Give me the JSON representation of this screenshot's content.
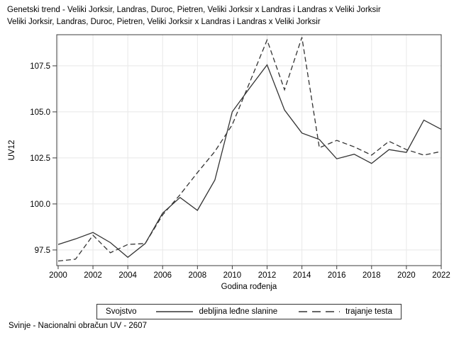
{
  "title": {
    "line1": "Genetski trend - Veliki Jorksir, Landras, Duroc, Pietren, Veliki Jorksir x Landras i Landras x Veliki Jorksir",
    "line2": "Veliki Jorksir, Landras, Duroc, Pietren, Veliki Jorksir x Landras i Landras x Veliki Jorksir"
  },
  "footer": "Svinje - Nacionalni obračun UV - 2607",
  "legend": {
    "title": "Svojstvo",
    "items": [
      {
        "label": "debljina leđne slanine",
        "style": "solid"
      },
      {
        "label": "trajanje testa",
        "style": "dashed"
      }
    ]
  },
  "colors": {
    "line": "#333333",
    "grid": "#e8e8e8",
    "frame": "#3c3c3c",
    "text": "#000000",
    "background": "#ffffff"
  },
  "chart_data": {
    "type": "line",
    "title": "Genetski trend - Veliki Jorksir, Landras, Duroc, Pietren, Veliki Jorksir x Landras i Landras x Veliki Jorksir",
    "subtitle": "Veliki Jorksir, Landras, Duroc, Pietren, Veliki Jorksir x Landras i Landras x Veliki Jorksir",
    "xlabel": "Godina rođenja",
    "ylabel": "UV12",
    "x": [
      2000,
      2001,
      2002,
      2003,
      2004,
      2005,
      2006,
      2007,
      2008,
      2009,
      2010,
      2011,
      2012,
      2013,
      2014,
      2015,
      2016,
      2017,
      2018,
      2019,
      2020,
      2021,
      2022
    ],
    "series": [
      {
        "name": "debljina leđne slanine",
        "dash": false,
        "values": [
          97.8,
          98.1,
          98.45,
          97.9,
          97.1,
          97.85,
          99.5,
          100.35,
          99.65,
          101.3,
          105.0,
          106.3,
          107.55,
          105.1,
          103.85,
          103.5,
          102.45,
          102.7,
          102.2,
          102.95,
          102.8,
          104.55,
          104.05
        ]
      },
      {
        "name": "trajanje testa",
        "dash": true,
        "values": [
          96.9,
          97.0,
          98.3,
          97.35,
          97.8,
          97.85,
          99.4,
          100.5,
          101.7,
          102.85,
          104.3,
          106.6,
          108.9,
          106.2,
          109.05,
          103.05,
          103.45,
          103.1,
          102.65,
          103.4,
          102.95,
          102.65,
          102.85
        ]
      }
    ],
    "xticks": [
      2000,
      2002,
      2004,
      2006,
      2008,
      2010,
      2012,
      2014,
      2016,
      2018,
      2020,
      2022
    ],
    "yticks": [
      97.5,
      100.0,
      102.5,
      105.0,
      107.5
    ],
    "xlim": [
      1999.92,
      2022
    ],
    "ylim": [
      96.65,
      109.19
    ],
    "grid": true,
    "legend_position": "bottom"
  }
}
